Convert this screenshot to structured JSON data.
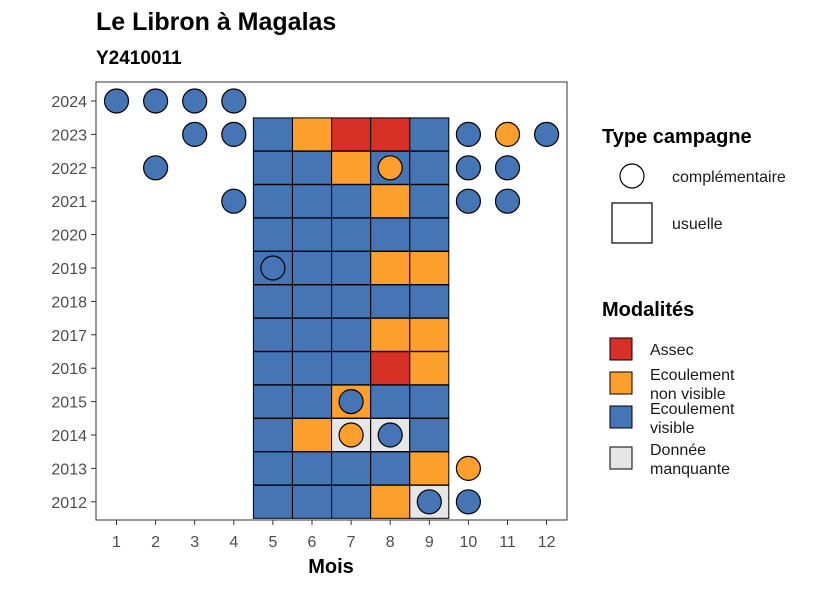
{
  "chart_data": {
    "type": "heatmap",
    "title": "Le Libron à Magalas",
    "subtitle": "Y2410011",
    "xlabel": "Mois",
    "ylabel": "",
    "x_ticks": [
      "1",
      "2",
      "3",
      "4",
      "5",
      "6",
      "7",
      "8",
      "9",
      "10",
      "11",
      "12"
    ],
    "y_ticks": [
      "2024",
      "2023",
      "2022",
      "2021",
      "2020",
      "2019",
      "2018",
      "2017",
      "2016",
      "2015",
      "2014",
      "2013",
      "2012"
    ],
    "legend_type": {
      "title": "Type campagne",
      "items": [
        "complémentaire",
        "usuelle"
      ]
    },
    "legend_modalites": {
      "title": "Modalités",
      "items": [
        {
          "key": "assec",
          "lines": [
            "Assec"
          ],
          "color": "#d73027"
        },
        {
          "key": "nonvisible",
          "lines": [
            "Ecoulement",
            "non visible"
          ],
          "color": "#fd9f2d"
        },
        {
          "key": "visible",
          "lines": [
            "Ecoulement",
            "visible"
          ],
          "color": "#4575b4"
        },
        {
          "key": "missing",
          "lines": [
            "Donnée",
            "manquante"
          ],
          "color": "#e6e6e6"
        }
      ]
    },
    "squares": [
      {
        "year": 2023,
        "months": [
          "visible",
          "nonvisible",
          "assec",
          "assec",
          "visible"
        ]
      },
      {
        "year": 2022,
        "months": [
          "visible",
          "visible",
          "nonvisible",
          "visible",
          "visible"
        ]
      },
      {
        "year": 2021,
        "months": [
          "visible",
          "visible",
          "visible",
          "nonvisible",
          "visible"
        ]
      },
      {
        "year": 2020,
        "months": [
          "visible",
          "visible",
          "visible",
          "visible",
          "visible"
        ]
      },
      {
        "year": 2019,
        "months": [
          "visible",
          "visible",
          "visible",
          "nonvisible",
          "nonvisible"
        ]
      },
      {
        "year": 2018,
        "months": [
          "visible",
          "visible",
          "visible",
          "visible",
          "visible"
        ]
      },
      {
        "year": 2017,
        "months": [
          "visible",
          "visible",
          "visible",
          "nonvisible",
          "nonvisible"
        ]
      },
      {
        "year": 2016,
        "months": [
          "visible",
          "visible",
          "visible",
          "assec",
          "nonvisible"
        ]
      },
      {
        "year": 2015,
        "months": [
          "visible",
          "visible",
          "nonvisible",
          "visible",
          "visible"
        ]
      },
      {
        "year": 2014,
        "months": [
          "visible",
          "nonvisible",
          "missing",
          "missing",
          "visible"
        ]
      },
      {
        "year": 2013,
        "months": [
          "visible",
          "visible",
          "visible",
          "visible",
          "nonvisible"
        ]
      },
      {
        "year": 2012,
        "months": [
          "visible",
          "visible",
          "visible",
          "nonvisible",
          "missing"
        ]
      }
    ],
    "square_start_month": 5,
    "circles": [
      {
        "year": 2024,
        "month": 1,
        "mod": "visible"
      },
      {
        "year": 2024,
        "month": 2,
        "mod": "visible"
      },
      {
        "year": 2024,
        "month": 3,
        "mod": "visible"
      },
      {
        "year": 2024,
        "month": 4,
        "mod": "visible"
      },
      {
        "year": 2023,
        "month": 3,
        "mod": "visible"
      },
      {
        "year": 2023,
        "month": 4,
        "mod": "visible"
      },
      {
        "year": 2023,
        "month": 10,
        "mod": "visible"
      },
      {
        "year": 2023,
        "month": 11,
        "mod": "nonvisible"
      },
      {
        "year": 2023,
        "month": 12,
        "mod": "visible"
      },
      {
        "year": 2022,
        "month": 2,
        "mod": "visible"
      },
      {
        "year": 2022,
        "month": 8,
        "mod": "nonvisible"
      },
      {
        "year": 2022,
        "month": 10,
        "mod": "visible"
      },
      {
        "year": 2022,
        "month": 11,
        "mod": "visible"
      },
      {
        "year": 2021,
        "month": 4,
        "mod": "visible"
      },
      {
        "year": 2021,
        "month": 10,
        "mod": "visible"
      },
      {
        "year": 2021,
        "month": 11,
        "mod": "visible"
      },
      {
        "year": 2019,
        "month": 5,
        "mod": "visible"
      },
      {
        "year": 2015,
        "month": 7,
        "mod": "visible"
      },
      {
        "year": 2014,
        "month": 7,
        "mod": "nonvisible"
      },
      {
        "year": 2014,
        "month": 8,
        "mod": "visible"
      },
      {
        "year": 2013,
        "month": 10,
        "mod": "nonvisible"
      },
      {
        "year": 2012,
        "month": 9,
        "mod": "visible"
      },
      {
        "year": 2012,
        "month": 10,
        "mod": "visible"
      }
    ]
  }
}
